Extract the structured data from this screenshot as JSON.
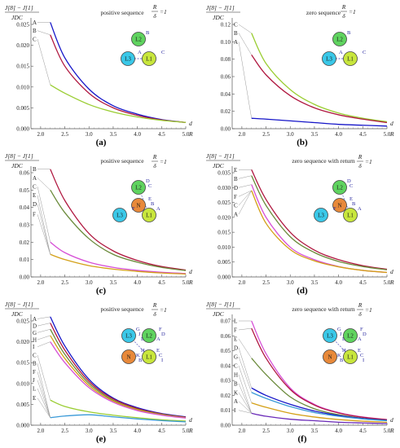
{
  "chart_data": [
    {
      "type": "line",
      "panel": "(a)",
      "title": "positive sequence",
      "ratio": {
        "num": "R",
        "den": "δ",
        "val": "=1"
      },
      "ylabel_top": "J[8] − J[1]",
      "ylabel_bottom": "JDC",
      "xlabel": "d",
      "x_unit": "R",
      "xlim": [
        1.8,
        5.0
      ],
      "ylim": [
        0,
        0.025
      ],
      "xticks": [
        "2.0",
        "2.5",
        "3.0",
        "3.5",
        "4.0",
        "4.5",
        "5.0"
      ],
      "yticks": [
        "0.000",
        "0.005",
        "0.010",
        "0.015",
        "0.020",
        "0.025"
      ],
      "curve_labels": [
        "A",
        "B",
        "C"
      ],
      "label_values": [
        0.0255,
        0.0235,
        0.0215
      ],
      "series": [
        {
          "color": "#1515c8",
          "x": [
            2.2,
            2.5,
            3.0,
            3.5,
            4.0,
            4.5,
            5.0
          ],
          "y": [
            0.0255,
            0.017,
            0.0095,
            0.0055,
            0.0035,
            0.0022,
            0.0015
          ]
        },
        {
          "color": "#b01840",
          "x": [
            2.2,
            2.5,
            3.0,
            3.5,
            4.0,
            4.5,
            5.0
          ],
          "y": [
            0.0225,
            0.015,
            0.0085,
            0.005,
            0.0032,
            0.0021,
            0.0015
          ]
        },
        {
          "color": "#9acd32",
          "x": [
            2.2,
            2.5,
            3.0,
            3.5,
            4.0,
            4.5,
            5.0
          ],
          "y": [
            0.0105,
            0.0085,
            0.0058,
            0.004,
            0.0028,
            0.002,
            0.0015
          ]
        }
      ],
      "nodes": [
        {
          "name": "L2",
          "color": "#5fd35f"
        },
        {
          "name": "L3",
          "color": "#3ac8e8"
        },
        {
          "name": "L1",
          "color": "#c8e63c"
        }
      ],
      "wire_labels": [
        "B",
        "A",
        "C"
      ]
    },
    {
      "type": "line",
      "panel": "(b)",
      "title": "zero sequence",
      "ratio": {
        "num": "R",
        "den": "δ",
        "val": "=1"
      },
      "ylabel_top": "J[8] − J[1]",
      "ylabel_bottom": "JDC",
      "xlabel": "d",
      "x_unit": "R",
      "xlim": [
        1.8,
        5.0
      ],
      "ylim": [
        0,
        0.12
      ],
      "xticks": [
        "2.0",
        "2.5",
        "3.0",
        "3.5",
        "4.0",
        "4.5",
        "5.0"
      ],
      "yticks": [
        "0.00",
        "0.02",
        "0.04",
        "0.06",
        "0.08",
        "0.10",
        "0.12"
      ],
      "curve_labels": [
        "C",
        "B",
        "A"
      ],
      "label_values": [
        0.12,
        0.11,
        0.1
      ],
      "series": [
        {
          "color": "#9acd32",
          "x": [
            2.2,
            2.5,
            3.0,
            3.5,
            4.0,
            4.5,
            5.0
          ],
          "y": [
            0.11,
            0.075,
            0.045,
            0.028,
            0.018,
            0.012,
            0.008
          ]
        },
        {
          "color": "#b01840",
          "x": [
            2.2,
            2.5,
            3.0,
            3.5,
            4.0,
            4.5,
            5.0
          ],
          "y": [
            0.085,
            0.062,
            0.038,
            0.024,
            0.016,
            0.011,
            0.007
          ]
        },
        {
          "color": "#1515c8",
          "x": [
            2.2,
            2.5,
            3.0,
            3.5,
            4.0,
            4.5,
            5.0
          ],
          "y": [
            0.012,
            0.011,
            0.009,
            0.007,
            0.005,
            0.004,
            0.003
          ]
        }
      ],
      "nodes": [
        {
          "name": "L2",
          "color": "#5fd35f"
        },
        {
          "name": "L3",
          "color": "#3ac8e8"
        },
        {
          "name": "L1",
          "color": "#c8e63c"
        }
      ],
      "wire_labels": [
        "B",
        "A",
        "C"
      ]
    },
    {
      "type": "line",
      "panel": "(c)",
      "title": "positive sequence",
      "ratio": {
        "num": "R",
        "den": "δ",
        "val": "=1"
      },
      "ylabel_top": "J[8] − J[1]",
      "ylabel_bottom": "JDC",
      "xlabel": "d",
      "x_unit": "R",
      "xlim": [
        1.8,
        5.0
      ],
      "ylim": [
        0,
        0.06
      ],
      "xticks": [
        "2.0",
        "2.5",
        "3.0",
        "3.5",
        "4.0",
        "4.5",
        "5.0"
      ],
      "yticks": [
        "0.00",
        "0.01",
        "0.02",
        "0.03",
        "0.04",
        "0.05",
        "0.06"
      ],
      "curve_labels": [
        "B",
        "A",
        "C",
        "E",
        "D",
        "F"
      ],
      "label_values": [
        0.062,
        0.057,
        0.052,
        0.047,
        0.042,
        0.036
      ],
      "series": [
        {
          "color": "#b01840",
          "x": [
            2.2,
            2.5,
            3.0,
            3.5,
            4.0,
            4.5,
            5.0
          ],
          "y": [
            0.062,
            0.044,
            0.025,
            0.015,
            0.0095,
            0.006,
            0.004
          ]
        },
        {
          "color": "#6a8a3a",
          "x": [
            2.2,
            2.5,
            3.0,
            3.5,
            4.0,
            4.5,
            5.0
          ],
          "y": [
            0.05,
            0.037,
            0.022,
            0.013,
            0.0085,
            0.0055,
            0.0037
          ]
        },
        {
          "color": "#d64fd6",
          "x": [
            2.2,
            2.5,
            3.0,
            3.5,
            4.0,
            4.5,
            5.0
          ],
          "y": [
            0.02,
            0.014,
            0.0085,
            0.0055,
            0.0038,
            0.0027,
            0.002
          ]
        },
        {
          "color": "#d4a017",
          "x": [
            2.2,
            2.5,
            3.0,
            3.5,
            4.0,
            4.5,
            5.0
          ],
          "y": [
            0.013,
            0.01,
            0.0065,
            0.0045,
            0.0032,
            0.0023,
            0.0017
          ]
        }
      ],
      "nodes": [
        {
          "name": "L2",
          "color": "#5fd35f"
        },
        {
          "name": "N",
          "color": "#e8893a"
        },
        {
          "name": "L3",
          "color": "#3ac8e8"
        },
        {
          "name": "L1",
          "color": "#c8e63c"
        }
      ],
      "wire_labels": [
        "D",
        "E",
        "F",
        "A",
        "C",
        "B"
      ]
    },
    {
      "type": "line",
      "panel": "(d)",
      "title": "zero sequence with return",
      "ratio": {
        "num": "R",
        "den": "δ",
        "val": "=1"
      },
      "ylabel_top": "J[8] − J[1]",
      "ylabel_bottom": "JDC",
      "xlabel": "d",
      "x_unit": "R",
      "xlim": [
        1.8,
        5.0
      ],
      "ylim": [
        0,
        0.035
      ],
      "xticks": [
        "2.0",
        "2.5",
        "3.0",
        "3.5",
        "4.0",
        "4.5",
        "5.0"
      ],
      "yticks": [
        "0.000",
        "0.005",
        "0.010",
        "0.015",
        "0.020",
        "0.025",
        "0.030",
        "0.035"
      ],
      "curve_labels": [
        "E",
        "B",
        "D",
        "F",
        "C",
        "A"
      ],
      "label_values": [
        0.036,
        0.033,
        0.03,
        0.027,
        0.024,
        0.021
      ],
      "series": [
        {
          "color": "#b01840",
          "x": [
            2.2,
            2.5,
            3.0,
            3.5,
            4.0,
            4.5,
            5.0
          ],
          "y": [
            0.036,
            0.026,
            0.015,
            0.009,
            0.0058,
            0.0038,
            0.0026
          ]
        },
        {
          "color": "#6a8a3a",
          "x": [
            2.2,
            2.5,
            3.0,
            3.5,
            4.0,
            4.5,
            5.0
          ],
          "y": [
            0.034,
            0.024,
            0.0135,
            0.0082,
            0.0052,
            0.0035,
            0.0024
          ]
        },
        {
          "color": "#d64fd6",
          "x": [
            2.2,
            2.5,
            3.0,
            3.5,
            4.0,
            4.5,
            5.0
          ],
          "y": [
            0.031,
            0.02,
            0.01,
            0.0058,
            0.0035,
            0.0022,
            0.0015
          ]
        },
        {
          "color": "#d4a017",
          "x": [
            2.2,
            2.5,
            3.0,
            3.5,
            4.0,
            4.5,
            5.0
          ],
          "y": [
            0.029,
            0.018,
            0.0092,
            0.0054,
            0.0034,
            0.0022,
            0.0015
          ]
        }
      ],
      "nodes": [
        {
          "name": "L2",
          "color": "#5fd35f"
        },
        {
          "name": "N",
          "color": "#e8893a"
        },
        {
          "name": "L3",
          "color": "#3ac8e8"
        },
        {
          "name": "L1",
          "color": "#c8e63c"
        }
      ],
      "wire_labels": [
        "D",
        "E",
        "F",
        "A",
        "C",
        "B"
      ]
    },
    {
      "type": "line",
      "panel": "(e)",
      "title": "positive sequence",
      "ratio": {
        "num": "R",
        "den": "δ",
        "val": "=1"
      },
      "ylabel_top": "J[8] − J[1]",
      "ylabel_bottom": "JDC",
      "xlabel": "d",
      "x_unit": "R",
      "xlim": [
        1.8,
        5.0
      ],
      "ylim": [
        0,
        0.025
      ],
      "xticks": [
        "2.0",
        "2.5",
        "3.0",
        "3.5",
        "4.0",
        "4.5",
        "5.0"
      ],
      "yticks": [
        "0.000",
        "0.005",
        "0.010",
        "0.015",
        "0.020",
        "0.025"
      ],
      "curve_labels": [
        "A",
        "D",
        "G",
        "H",
        "I",
        "C",
        "B",
        "F",
        "J",
        "L",
        "E"
      ],
      "label_values": [
        0.0255,
        0.0238,
        0.0222,
        0.0205,
        0.0188,
        0.0168,
        0.0148,
        0.0128,
        0.0108,
        0.0088,
        0.0065
      ],
      "series": [
        {
          "color": "#1515c8",
          "x": [
            2.2,
            2.5,
            3.0,
            3.5,
            4.0,
            4.5,
            5.0
          ],
          "y": [
            0.026,
            0.019,
            0.011,
            0.0065,
            0.0042,
            0.0028,
            0.002
          ]
        },
        {
          "color": "#b01840",
          "x": [
            2.2,
            2.5,
            3.0,
            3.5,
            4.0,
            4.5,
            5.0
          ],
          "y": [
            0.0245,
            0.018,
            0.0105,
            0.0063,
            0.004,
            0.0027,
            0.0019
          ]
        },
        {
          "color": "#6a8a3a",
          "x": [
            2.2,
            2.5,
            3.0,
            3.5,
            4.0,
            4.5,
            5.0
          ],
          "y": [
            0.023,
            0.017,
            0.01,
            0.006,
            0.0038,
            0.0026,
            0.0018
          ]
        },
        {
          "color": "#d4a017",
          "x": [
            2.2,
            2.5,
            3.0,
            3.5,
            4.0,
            4.5,
            5.0
          ],
          "y": [
            0.0215,
            0.016,
            0.0095,
            0.0058,
            0.0037,
            0.0025,
            0.0018
          ]
        },
        {
          "color": "#d64fd6",
          "x": [
            2.2,
            2.5,
            3.0,
            3.5,
            4.0,
            4.5,
            5.0
          ],
          "y": [
            0.02,
            0.015,
            0.009,
            0.0055,
            0.0035,
            0.0024,
            0.0017
          ]
        },
        {
          "color": "#9acd32",
          "x": [
            2.2,
            2.5,
            3.0,
            3.5,
            4.0,
            4.5,
            5.0
          ],
          "y": [
            0.006,
            0.0045,
            0.0032,
            0.0024,
            0.0018,
            0.0013,
            0.001
          ]
        },
        {
          "color": "#3a9ad8",
          "x": [
            2.2,
            2.5,
            3.0,
            3.5,
            4.0,
            4.5,
            5.0
          ],
          "y": [
            0.0018,
            0.0022,
            0.0025,
            0.002,
            0.0015,
            0.0011,
            0.0008
          ]
        }
      ],
      "nodes": [
        {
          "name": "L3",
          "color": "#3ac8e8"
        },
        {
          "name": "L2",
          "color": "#5fd35f"
        },
        {
          "name": "N",
          "color": "#e8893a"
        },
        {
          "name": "L1",
          "color": "#c8e63c"
        }
      ],
      "wire_labels": [
        "G",
        "F",
        "H",
        "E",
        "J",
        "D",
        "K",
        "C",
        "L",
        "A",
        "B",
        "I"
      ]
    },
    {
      "type": "line",
      "panel": "(f)",
      "title": "zero sequence with return",
      "ratio": {
        "num": "R",
        "den": "δ",
        "val": "=1"
      },
      "ylabel_top": "J[8] − J[1]",
      "ylabel_bottom": "JDC",
      "xlabel": "d",
      "x_unit": "R",
      "xlim": [
        1.8,
        5.0
      ],
      "ylim": [
        0,
        0.07
      ],
      "xticks": [
        "2.0",
        "2.5",
        "3.0",
        "3.5",
        "4.0",
        "4.5",
        "5.0"
      ],
      "yticks": [
        "0.00",
        "0.01",
        "0.02",
        "0.03",
        "0.04",
        "0.05",
        "0.06",
        "0.07"
      ],
      "curve_labels": [
        "L",
        "F",
        "E",
        "D",
        "G",
        "C",
        "H",
        "B",
        "K",
        "A",
        "I"
      ],
      "label_values": [
        0.07,
        0.064,
        0.058,
        0.052,
        0.046,
        0.04,
        0.034,
        0.028,
        0.022,
        0.016,
        0.01
      ],
      "series": [
        {
          "color": "#d64fd6",
          "x": [
            2.2,
            2.5,
            3.0,
            3.5,
            4.0,
            4.5,
            5.0
          ],
          "y": [
            0.07,
            0.048,
            0.025,
            0.014,
            0.0085,
            0.0055,
            0.0038
          ]
        },
        {
          "color": "#b01840",
          "x": [
            2.2,
            2.5,
            3.0,
            3.5,
            4.0,
            4.5,
            5.0
          ],
          "y": [
            0.065,
            0.045,
            0.024,
            0.0135,
            0.0082,
            0.0053,
            0.0037
          ]
        },
        {
          "color": "#6a8a3a",
          "x": [
            2.2,
            2.5,
            3.0,
            3.5,
            4.0,
            4.5,
            5.0
          ],
          "y": [
            0.045,
            0.034,
            0.019,
            0.011,
            0.007,
            0.0046,
            0.0032
          ]
        },
        {
          "color": "#1515c8",
          "x": [
            2.2,
            2.5,
            3.0,
            3.5,
            4.0,
            4.5,
            5.0
          ],
          "y": [
            0.025,
            0.02,
            0.014,
            0.0095,
            0.0065,
            0.0045,
            0.0032
          ]
        },
        {
          "color": "#3a9ad8",
          "x": [
            2.2,
            2.5,
            3.0,
            3.5,
            4.0,
            4.5,
            5.0
          ],
          "y": [
            0.022,
            0.018,
            0.0125,
            0.0085,
            0.006,
            0.0042,
            0.003
          ]
        },
        {
          "color": "#d4a017",
          "x": [
            2.2,
            2.5,
            3.0,
            3.5,
            4.0,
            4.5,
            5.0
          ],
          "y": [
            0.015,
            0.012,
            0.008,
            0.0055,
            0.0038,
            0.0027,
            0.002
          ]
        },
        {
          "color": "#6a2ab8",
          "x": [
            2.2,
            2.5,
            3.0,
            3.5,
            4.0,
            4.5,
            5.0
          ],
          "y": [
            0.008,
            0.006,
            0.004,
            0.003,
            0.002,
            0.0015,
            0.0011
          ]
        }
      ],
      "nodes": [
        {
          "name": "L3",
          "color": "#3ac8e8"
        },
        {
          "name": "L2",
          "color": "#5fd35f"
        },
        {
          "name": "N",
          "color": "#e8893a"
        },
        {
          "name": "L1",
          "color": "#c8e63c"
        }
      ],
      "wire_labels": [
        "G",
        "F",
        "H",
        "E",
        "J",
        "D",
        "K",
        "C",
        "L",
        "A",
        "B",
        "I"
      ]
    }
  ]
}
